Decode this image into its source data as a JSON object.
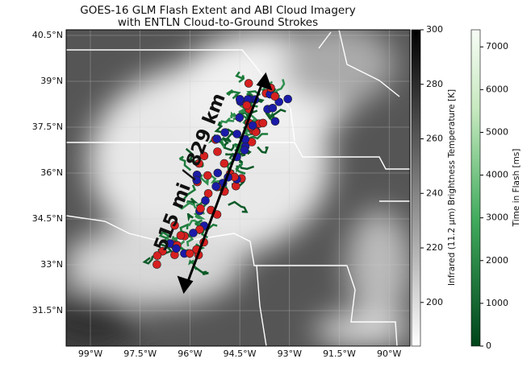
{
  "title": [
    "GOES-16 GLM Flash Extent and ABI Cloud Imagery",
    "with ENTLN Cloud-to-Ground Strokes"
  ],
  "map": {
    "lat_ticks": [
      "40.5°N",
      "39°N",
      "37.5°N",
      "36°N",
      "34.5°N",
      "33°N",
      "31.5°N"
    ],
    "lon_ticks": [
      "99°W",
      "97.5°W",
      "96°W",
      "94.5°W",
      "93°W",
      "91.5°W",
      "90°W"
    ],
    "annotation": "515 mi / 829 km"
  },
  "colorbars": [
    {
      "label": "Infrared (11.2 μm) Brightness Temperature [K]",
      "lim": [
        184,
        300
      ],
      "ticks": [
        200,
        220,
        240,
        260,
        280,
        300
      ]
    },
    {
      "label": "Time in Flash [ms]",
      "lim": [
        0,
        7400
      ],
      "ticks": [
        0,
        1000,
        2000,
        3000,
        4000,
        5000,
        6000,
        7000
      ]
    }
  ]
}
